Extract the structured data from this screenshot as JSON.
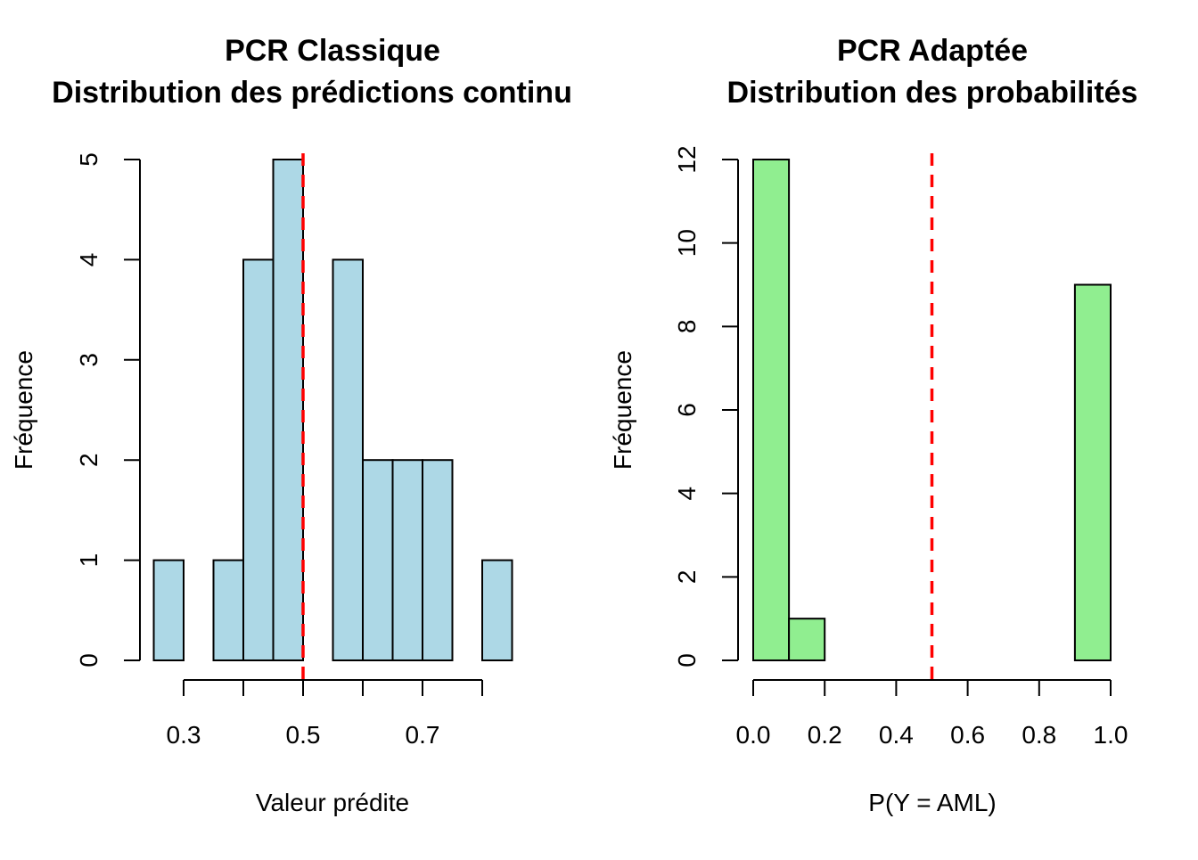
{
  "colors": {
    "left_fill": "#ADD8E6",
    "right_fill": "#90EE90",
    "threshold_line": "#FF0000",
    "border": "#000000"
  },
  "chart_data": [
    {
      "type": "bar",
      "subtype": "histogram",
      "title": "PCR Classique",
      "subtitle": "Distribution des prédictions continu",
      "xlabel": "Valeur prédite",
      "ylabel": "Fréquence",
      "bin_edges": [
        0.25,
        0.3,
        0.35,
        0.4,
        0.45,
        0.5,
        0.55,
        0.6,
        0.65,
        0.7,
        0.75,
        0.8,
        0.85
      ],
      "values": [
        1,
        0,
        1,
        4,
        5,
        0,
        4,
        2,
        2,
        2,
        0,
        1
      ],
      "xticks": [
        0.3,
        0.5,
        0.7
      ],
      "xtick_labels": [
        "0.3",
        "0.5",
        "0.7"
      ],
      "yticks": [
        0,
        1,
        2,
        3,
        4,
        5
      ],
      "ytick_labels": [
        "0",
        "1",
        "2",
        "3",
        "4",
        "5"
      ],
      "xaxis_range": [
        0.3,
        0.8
      ],
      "ylim": [
        0,
        5
      ],
      "threshold": 0.5,
      "threshold_style": "dashed",
      "fill_color": "#ADD8E6",
      "grid": false,
      "legend": "none"
    },
    {
      "type": "bar",
      "subtype": "histogram",
      "title": "PCR Adaptée",
      "subtitle": "Distribution des probabilités",
      "xlabel": "P(Y = AML)",
      "ylabel": "Fréquence",
      "bin_edges": [
        0.0,
        0.1,
        0.2,
        0.3,
        0.4,
        0.5,
        0.6,
        0.7,
        0.8,
        0.9,
        1.0
      ],
      "values": [
        12,
        1,
        0,
        0,
        0,
        0,
        0,
        0,
        0,
        9
      ],
      "xticks": [
        0.0,
        0.2,
        0.4,
        0.6,
        0.8,
        1.0
      ],
      "xtick_labels": [
        "0.0",
        "0.2",
        "0.4",
        "0.6",
        "0.8",
        "1.0"
      ],
      "yticks": [
        0,
        2,
        4,
        6,
        8,
        10,
        12
      ],
      "ytick_labels": [
        "0",
        "2",
        "4",
        "6",
        "8",
        "10",
        "12"
      ],
      "xaxis_range": [
        0.0,
        1.0
      ],
      "ylim": [
        0,
        12
      ],
      "threshold": 0.5,
      "threshold_style": "dashed",
      "fill_color": "#90EE90",
      "grid": false,
      "legend": "none"
    }
  ]
}
